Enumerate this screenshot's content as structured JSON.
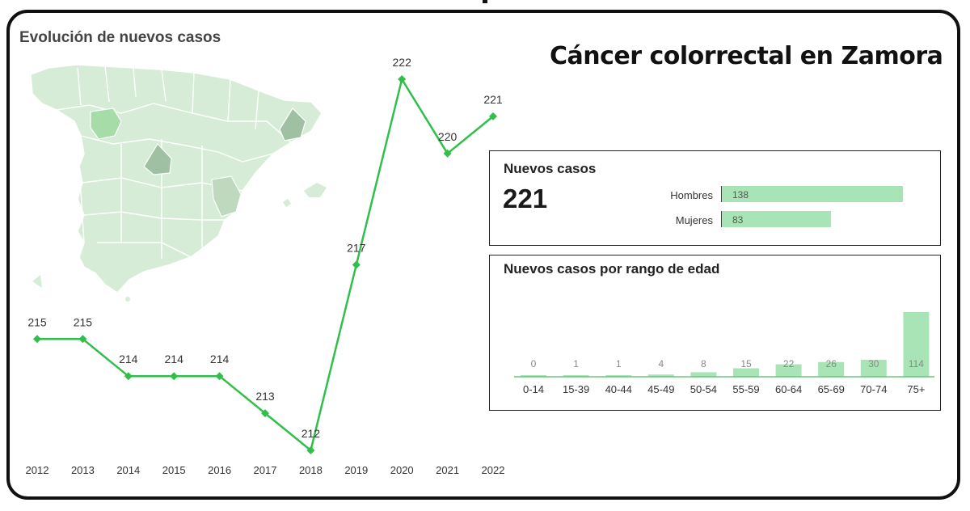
{
  "header": {
    "map_chart_title": "Evolución de nuevos casos",
    "main_title": "Cáncer colorrectal en Zamora"
  },
  "summary": {
    "title": "Nuevos casos",
    "total": "221",
    "sex_bars": [
      {
        "label": "Hombres",
        "value": 138
      },
      {
        "label": "Mujeres",
        "value": 83
      }
    ]
  },
  "age_panel": {
    "title": "Nuevos casos por rango de edad"
  },
  "colors": {
    "line": "#2fbf4a",
    "bar": "#a8e4b5",
    "map_base": "#d6ecd6",
    "map_highlight": "#a6dca8",
    "map_dark": "#9fc0a2"
  },
  "chart_data": [
    {
      "type": "line",
      "title": "Evolución de nuevos casos",
      "x": [
        "2012",
        "2013",
        "2014",
        "2015",
        "2016",
        "2017",
        "2018",
        "2019",
        "2020",
        "2021",
        "2022"
      ],
      "series": [
        {
          "values": [
            215,
            215,
            214,
            214,
            214,
            213,
            212,
            217,
            222,
            220,
            221
          ]
        }
      ],
      "data_labels": true,
      "grid": false
    },
    {
      "type": "bar",
      "title": "Nuevos casos por rango de edad",
      "categories": [
        "0-14",
        "15-39",
        "40-44",
        "45-49",
        "50-54",
        "55-59",
        "60-64",
        "65-69",
        "70-74",
        "75+"
      ],
      "values": [
        0,
        1,
        1,
        4,
        8,
        15,
        22,
        26,
        30,
        114
      ],
      "data_labels": true
    },
    {
      "type": "bar",
      "orientation": "horizontal",
      "title": "Nuevos casos",
      "categories": [
        "Hombres",
        "Mujeres"
      ],
      "values": [
        138,
        83
      ]
    }
  ]
}
